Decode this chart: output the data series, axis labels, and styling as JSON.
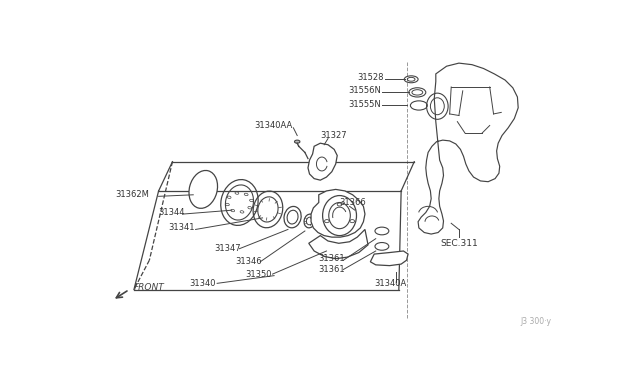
{
  "bg_color": "#ffffff",
  "line_color": "#444444",
  "text_color": "#333333",
  "watermark": "J3 300·y",
  "sec_label": "SEC.311",
  "front_label": "FRONT"
}
